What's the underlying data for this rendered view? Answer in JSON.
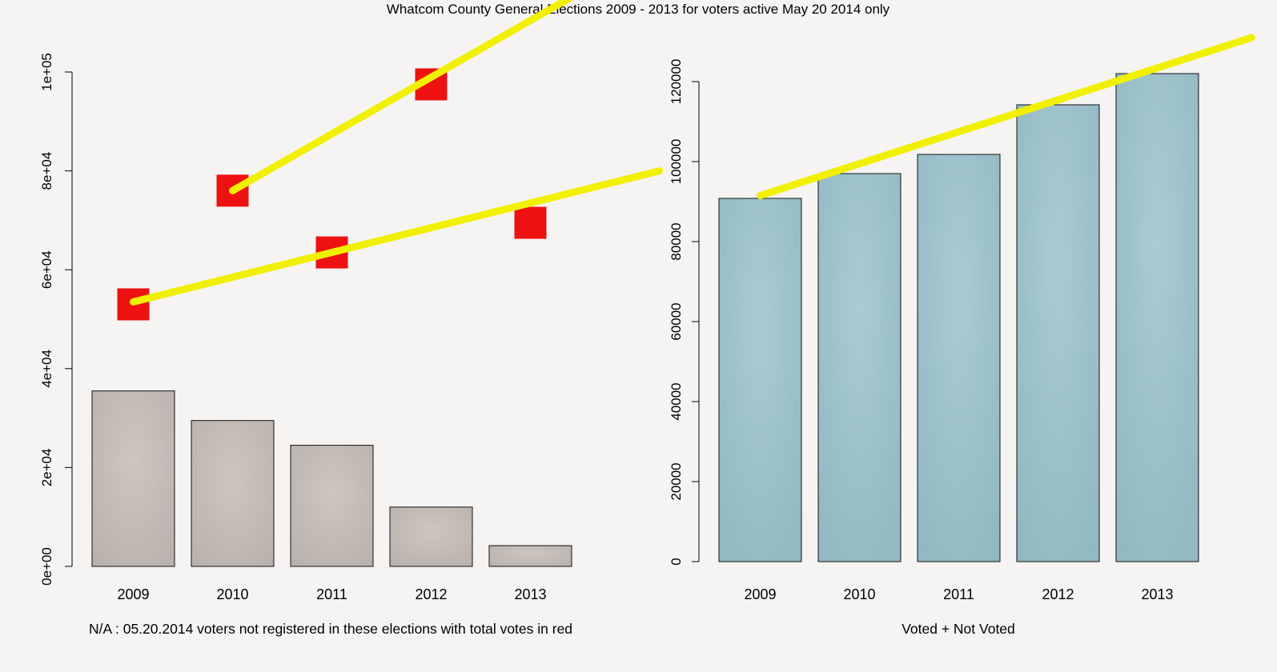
{
  "title": "Whatcom County General Elections 2009 - 2013 for voters active May 20 2014 only",
  "colors": {
    "background": "#f6f4f3",
    "left_bar": "#c6bdb7",
    "right_bar": "#9fc3cd",
    "marker": "#ee1111",
    "trend_line": "#f0f000"
  },
  "chart_data": [
    {
      "type": "bar",
      "title": "",
      "xlabel": "N/A : 05.20.2014 voters not registered in these elections with total votes in red",
      "ylabel": "",
      "categories": [
        "2009",
        "2010",
        "2011",
        "2012",
        "2013"
      ],
      "series": [
        {
          "values": [
            35500,
            29500,
            24500,
            12000,
            4200
          ]
        }
      ],
      "markers": {
        "color": "red",
        "x": [
          "2009",
          "2010",
          "2011",
          "2012",
          "2013"
        ],
        "values": [
          53000,
          76000,
          63500,
          97500,
          69500
        ]
      },
      "trend_lines": [
        {
          "color": "yellow",
          "from": {
            "x": "2009",
            "y": 53500
          },
          "to": {
            "x": "2014.3",
            "y": 80000
          }
        },
        {
          "color": "yellow",
          "from": {
            "x": "2010",
            "y": 76000
          },
          "to": {
            "x": "2013.4",
            "y": 115000
          }
        }
      ],
      "ylim": [
        0,
        100000
      ],
      "yticks": [
        0,
        20000,
        40000,
        60000,
        80000,
        100000
      ],
      "ytick_labels": [
        "0e+00",
        "2e+04",
        "4e+04",
        "6e+04",
        "8e+04",
        "1e+05"
      ],
      "grid": false,
      "legend": "none"
    },
    {
      "type": "bar",
      "title": "",
      "xlabel": "Voted + Not Voted",
      "ylabel": "",
      "categories": [
        "2009",
        "2010",
        "2011",
        "2012",
        "2013"
      ],
      "series": [
        {
          "values": [
            90800,
            97000,
            101800,
            114200,
            122000
          ]
        }
      ],
      "trend_lines": [
        {
          "color": "yellow",
          "from": {
            "x": "2009",
            "y": 91500
          },
          "to": {
            "x": "2013.95",
            "y": 131000
          }
        }
      ],
      "ylim": [
        0,
        120000
      ],
      "yticks": [
        0,
        20000,
        40000,
        60000,
        80000,
        100000,
        120000
      ],
      "ytick_labels": [
        "0",
        "20000",
        "40000",
        "60000",
        "80000",
        "100000",
        "120000"
      ],
      "grid": false,
      "legend": "none"
    }
  ]
}
